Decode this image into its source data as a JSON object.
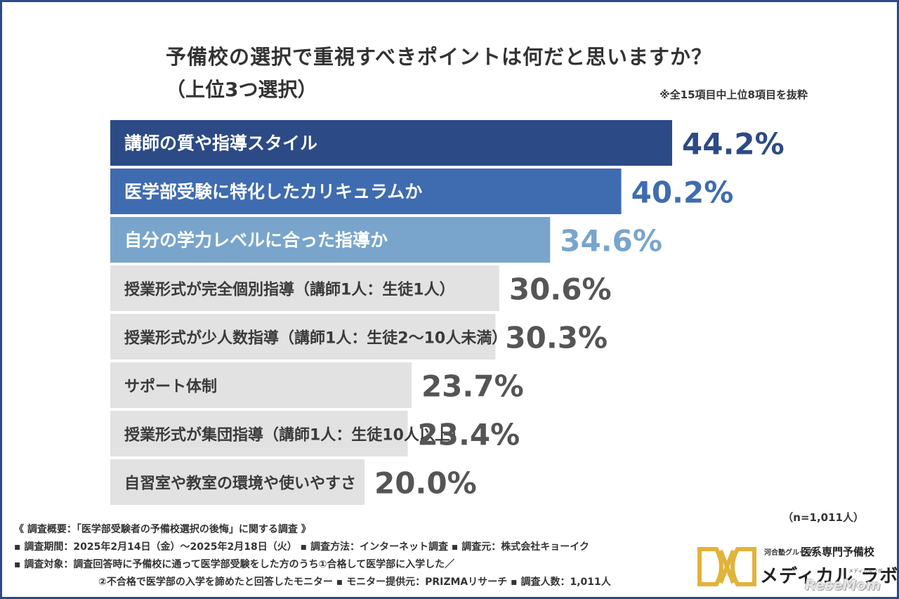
{
  "chart_data": {
    "type": "bar",
    "orientation": "horizontal",
    "title": "予備校の選択で重視すべきポイントは何だと思いますか？",
    "subtitle": "（上位3つ選択）",
    "note": "※全15項目中上位8項目を抜粋",
    "categories": [
      "講師の質や指導スタイル",
      "医学部受験に特化したカリキュラムか",
      "自分の学力レベルに合った指導か",
      "授業形式が完全個別指導（講師1人：生徒1人）",
      "授業形式が少人数指導（講師1人：生徒2～10人未満）",
      "サポート体制",
      "授業形式が集団指導（講師1人：生徒10人以上）",
      "自習室や教室の環境や使いやすさ"
    ],
    "values": [
      44.2,
      40.2,
      34.6,
      30.6,
      30.3,
      23.7,
      23.4,
      20.0
    ],
    "value_labels": [
      "44.2%",
      "40.2%",
      "34.6%",
      "30.6%",
      "30.3%",
      "23.7%",
      "23.4%",
      "20.0%"
    ],
    "bar_colors": [
      "#2c4a86",
      "#3f6cb0",
      "#79a5cc",
      "#e2e2e2",
      "#e2e2e2",
      "#e2e2e2",
      "#e2e2e2",
      "#e2e2e2"
    ],
    "label_colors": [
      "#ffffff",
      "#ffffff",
      "#ffffff",
      "#3a3a3a",
      "#3a3a3a",
      "#3a3a3a",
      "#3a3a3a",
      "#3a3a3a"
    ],
    "value_colors": [
      "#2c4a86",
      "#3f6cb0",
      "#79a5cc",
      "#555555",
      "#555555",
      "#555555",
      "#555555",
      "#555555"
    ],
    "xlim": [
      0,
      44.2
    ],
    "grid": false,
    "legend": "none"
  },
  "sample_size": "（n=1,011人）",
  "footer": {
    "line1": "《 調査概要：「医学部受験者の予備校選択の後悔」に関する調査 》",
    "line2": "▪ 調査期間：2025年2月14日（金）～2025年2月18日（火） ▪ 調査方法：インターネット調査 ▪ 調査元：株式会社キョーイク",
    "line3": "▪ 調査対象：調査回答時に予備校に通って医学部受験をした方のうち①合格して医学部に入学した／",
    "line4": "②不合格で医学部の入学を諦めたと回答したモニター ▪ モニター提供元：PRIZMAリサーチ ▪ 調査人数：1,011人"
  },
  "logo": {
    "group": "河合塾グループ",
    "school": "医系専門予備校",
    "brand": "メディカル ラボ",
    "brand_sub": "メディカルラボ",
    "mark_color": "#e2b33a"
  },
  "watermark": "ReseMom"
}
